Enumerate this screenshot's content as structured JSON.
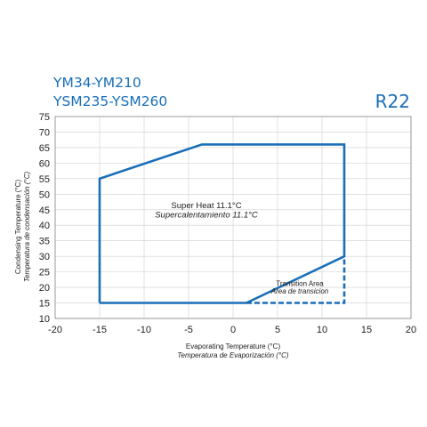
{
  "chart_data": {
    "type": "line",
    "titles": [
      "YM34-YM210",
      "YSM235-YSM260"
    ],
    "refrigerant": "R22",
    "xlabel": "Evaporating Temperature (°C)",
    "xlabel_es": "Temperatura de Evaporización (°C)",
    "ylabel": "Condensing Temperature (°C)",
    "ylabel_es": "Temperatura de condensación (°C)",
    "xlim": [
      -20,
      20
    ],
    "ylim": [
      10,
      75
    ],
    "xticks": [
      -20,
      -15,
      -10,
      -5,
      0,
      5,
      10,
      15,
      20
    ],
    "yticks": [
      10,
      15,
      20,
      25,
      30,
      35,
      40,
      45,
      50,
      55,
      60,
      65,
      70,
      75
    ],
    "grid": true,
    "color": "#1a6fb8",
    "series": [
      {
        "style": "solid",
        "points": [
          [
            -15,
            15
          ],
          [
            -15,
            55
          ],
          [
            -3.5,
            66
          ],
          [
            12.5,
            66
          ],
          [
            12.5,
            30
          ],
          [
            1.5,
            15
          ],
          [
            -15,
            15
          ]
        ]
      },
      {
        "style": "dashed",
        "points": [
          [
            1.5,
            15
          ],
          [
            12.5,
            15
          ],
          [
            12.5,
            30
          ]
        ]
      }
    ],
    "annotations": [
      {
        "text": "Super Heat 11.1°C",
        "style": "normal",
        "x": -3,
        "y": 45.5
      },
      {
        "text": "Supercalentamiento 11.1°C",
        "style": "italic",
        "x": -3,
        "y": 42.5
      },
      {
        "text": "Transition Area",
        "style": "small",
        "x": 7.5,
        "y": 20.5
      },
      {
        "text": "Area de transicion",
        "style": "small-italic",
        "x": 7.5,
        "y": 18
      }
    ]
  }
}
